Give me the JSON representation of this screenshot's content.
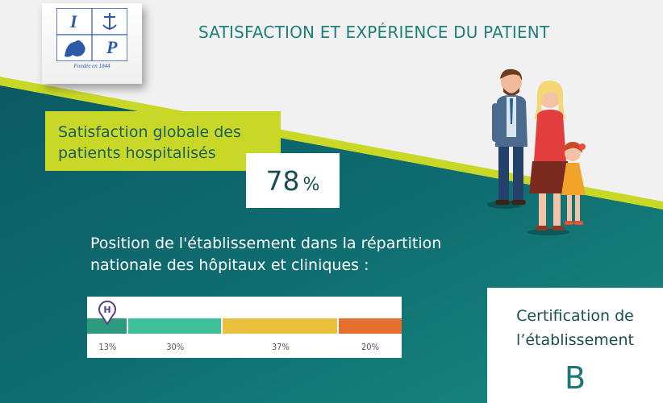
{
  "logo": {
    "letters": [
      "I",
      "P"
    ],
    "caption": "Fondée en 1844"
  },
  "header": {
    "title": "SATISFACTION ET EXPÉRIENCE DU PATIENT"
  },
  "satisfaction": {
    "label_line1": "Satisfaction globale des",
    "label_line2": "patients hospitalisés",
    "value": "78",
    "unit": "%"
  },
  "position": {
    "line1": "Position de l'établissement dans la répartition",
    "line2": "nationale des hôpitaux et cliniques :",
    "marker_icon": "hospital-pin-icon",
    "marker_letter": "H",
    "segments": [
      {
        "label": "13%",
        "share": 13,
        "color": "#2d9a80"
      },
      {
        "label": "30%",
        "share": 30,
        "color": "#3fbf99"
      },
      {
        "label": "37%",
        "share": 37,
        "color": "#e9c13f"
      },
      {
        "label": "20%",
        "share": 20,
        "color": "#e5702d"
      }
    ]
  },
  "certification": {
    "line1": "Certification de",
    "line2": "l’établissement",
    "grade": "B"
  },
  "colors": {
    "teal_dark": "#0b5f66",
    "teal": "#16857f",
    "lime": "#c9d827",
    "text_dark": "#1a4f52"
  },
  "illustration": {
    "icon": "family-illustration-icon"
  }
}
